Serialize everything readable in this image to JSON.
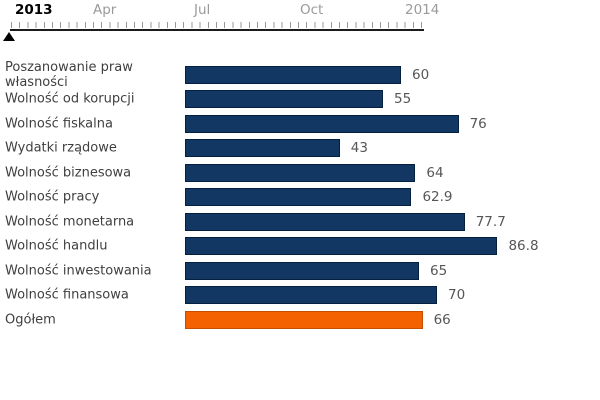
{
  "timeline": {
    "labels": [
      {
        "text": "2013"
      },
      {
        "text": "Apr"
      },
      {
        "text": "Jul"
      },
      {
        "text": "Oct"
      },
      {
        "text": "2014"
      }
    ],
    "marker": "triangle-up-slider-handle"
  },
  "chart_data": {
    "type": "bar",
    "orientation": "horizontal",
    "title": "",
    "xlabel": "",
    "ylabel": "",
    "xlim": [
      0,
      100
    ],
    "grid": false,
    "legend": "none",
    "categories": [
      "Poszanowanie praw własności",
      "Wolność od korupcji",
      "Wolność fiskalna",
      "Wydatki rządowe",
      "Wolność biznesowa",
      "Wolność pracy",
      "Wolność monetarna",
      "Wolność handlu",
      "Wolność inwestowania",
      "Wolność finansowa",
      "Ogółem"
    ],
    "values": [
      60,
      55,
      76,
      43,
      64,
      62.9,
      77.7,
      86.8,
      65,
      70,
      66
    ],
    "value_labels": [
      "60",
      "55",
      "76",
      "43",
      "64",
      "62.9",
      "77.7",
      "86.8",
      "65",
      "70",
      "66"
    ],
    "bar_color": "#123763",
    "bar_border_color": "#05203e",
    "highlight_index": 10,
    "highlight_color": "#f36100",
    "highlight_border_color": "#c54e00"
  },
  "colors": {
    "background": "#ffffff",
    "axis_line": "#1c1c1c",
    "tick": "#999999",
    "timeline_text": "#9a9a9a",
    "timeline_year_text": "#000000",
    "category_text": "#3f3f3f",
    "value_text": "#565656"
  }
}
